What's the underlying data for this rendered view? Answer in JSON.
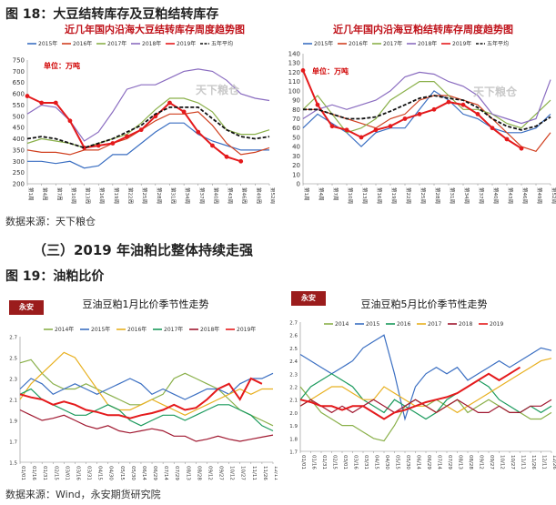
{
  "figure18": {
    "title": "图 18：大豆结转库存及豆粕结转库存",
    "source": "数据来源：天下粮仓"
  },
  "section": {
    "title": "（三）2019 年油粕比整体持续走强"
  },
  "figure19": {
    "title": "图 19：油粕比价",
    "source": "数据来源：Wind，永安期货研究院"
  },
  "logo": {
    "text": "天下粮仓"
  },
  "chart_data": [
    {
      "type": "line",
      "title": "近几年国内沿海大豆结转库存周度趋势图",
      "unit_label": "单位：万吨",
      "ylim": [
        200,
        750
      ],
      "yticks": [
        200,
        250,
        300,
        350,
        400,
        450,
        500,
        550,
        600,
        650,
        700,
        750
      ],
      "categories": [
        "第1周",
        "第4周",
        "第7周",
        "第10周",
        "第13周",
        "第16周",
        "第19周",
        "第22周",
        "第25周",
        "第28周",
        "第31周",
        "第34周",
        "第37周",
        "第40周",
        "第43周",
        "第46周",
        "第49周",
        "第52周"
      ],
      "series": [
        {
          "name": "2015年",
          "color": "#3b6fc2",
          "values": [
            300,
            300,
            290,
            300,
            270,
            280,
            330,
            330,
            380,
            430,
            470,
            470,
            420,
            390,
            370,
            350,
            350,
            350
          ]
        },
        {
          "name": "2016年",
          "color": "#d04020",
          "values": [
            350,
            340,
            340,
            330,
            350,
            350,
            380,
            400,
            440,
            480,
            510,
            510,
            520,
            460,
            380,
            330,
            340,
            360
          ]
        },
        {
          "name": "2017年",
          "color": "#8ab04a",
          "values": [
            380,
            400,
            390,
            380,
            360,
            380,
            400,
            420,
            470,
            530,
            580,
            580,
            560,
            520,
            440,
            420,
            420,
            440
          ]
        },
        {
          "name": "2018年",
          "color": "#8a6cc0",
          "values": [
            510,
            550,
            540,
            480,
            390,
            430,
            520,
            620,
            640,
            640,
            670,
            700,
            710,
            700,
            660,
            600,
            580,
            570
          ]
        },
        {
          "name": "2019年",
          "color": "#e41a1c",
          "values": [
            590,
            560,
            560,
            480,
            360,
            370,
            380,
            410,
            440,
            500,
            560,
            520,
            430,
            370,
            320,
            300,
            null,
            null
          ]
        },
        {
          "name": "五年平均",
          "color": "#111111",
          "values": [
            400,
            410,
            400,
            380,
            360,
            380,
            400,
            430,
            460,
            510,
            540,
            540,
            540,
            490,
            440,
            410,
            400,
            410
          ]
        }
      ]
    },
    {
      "type": "line",
      "title": "近几年国内沿海豆粕结转库存周度趋势图",
      "unit_label": "单位：万吨",
      "ylim": [
        0,
        140
      ],
      "yticks": [
        0,
        10,
        20,
        30,
        40,
        50,
        60,
        70,
        80,
        90,
        100,
        110,
        120,
        130,
        140
      ],
      "categories": [
        "第1周",
        "第4周",
        "第7周",
        "第10周",
        "第13周",
        "第16周",
        "第19周",
        "第22周",
        "第25周",
        "第28周",
        "第31周",
        "第34周",
        "第37周",
        "第40周",
        "第43周",
        "第46周",
        "第49周",
        "第52周"
      ],
      "series": [
        {
          "name": "2015年",
          "color": "#3b6fc2",
          "values": [
            60,
            75,
            65,
            55,
            40,
            55,
            60,
            60,
            80,
            100,
            90,
            75,
            70,
            60,
            55,
            55,
            60,
            75
          ]
        },
        {
          "name": "2016年",
          "color": "#d04020",
          "values": [
            80,
            80,
            75,
            70,
            65,
            60,
            70,
            75,
            90,
            95,
            95,
            90,
            85,
            70,
            55,
            40,
            35,
            55
          ]
        },
        {
          "name": "2017年",
          "color": "#8ab04a",
          "values": [
            80,
            95,
            75,
            55,
            60,
            70,
            90,
            100,
            110,
            110,
            95,
            80,
            80,
            75,
            65,
            60,
            75,
            90
          ]
        },
        {
          "name": "2018年",
          "color": "#8a6cc0",
          "values": [
            70,
            80,
            85,
            80,
            85,
            90,
            100,
            115,
            120,
            118,
            110,
            105,
            95,
            75,
            70,
            65,
            70,
            112
          ]
        },
        {
          "name": "2019年",
          "color": "#e41a1c",
          "values": [
            122,
            85,
            62,
            58,
            50,
            58,
            62,
            70,
            75,
            80,
            88,
            85,
            75,
            60,
            48,
            38,
            null,
            null
          ]
        },
        {
          "name": "五年平均",
          "color": "#111111",
          "values": [
            80,
            80,
            75,
            70,
            70,
            72,
            78,
            85,
            92,
            95,
            92,
            90,
            82,
            70,
            62,
            58,
            62,
            72
          ]
        }
      ]
    },
    {
      "type": "line",
      "title": "豆油豆粕1月比价季节性走势",
      "ylim": [
        1.5,
        2.7
      ],
      "yticks": [
        1.5,
        1.7,
        1.9,
        2.1,
        2.3,
        2.5,
        2.7
      ],
      "categories": [
        "01/01",
        "01/16",
        "01/31",
        "02/15",
        "03/01",
        "03/16",
        "03/31",
        "04/15",
        "04/30",
        "05/15",
        "05/30",
        "06/14",
        "06/29",
        "07/14",
        "07/29",
        "08/13",
        "08/28",
        "09/12",
        "09/27",
        "10/12",
        "10/27",
        "11/11",
        "11/26",
        "12/11"
      ],
      "series": [
        {
          "name": "2014年",
          "color": "#8ab04a",
          "values": [
            2.45,
            2.48,
            2.35,
            2.25,
            2.2,
            2.2,
            2.25,
            2.2,
            2.15,
            2.1,
            2.05,
            2.05,
            2.1,
            2.15,
            2.3,
            2.35,
            2.3,
            2.25,
            2.2,
            2.1,
            2.0,
            1.95,
            1.9,
            1.85
          ]
        },
        {
          "name": "2015年",
          "color": "#3b6fc2",
          "values": [
            2.2,
            2.3,
            2.25,
            2.15,
            2.2,
            2.25,
            2.2,
            2.15,
            2.2,
            2.25,
            2.3,
            2.25,
            2.15,
            2.2,
            2.15,
            2.1,
            2.15,
            2.2,
            2.2,
            2.15,
            2.25,
            2.3,
            2.3,
            2.35
          ]
        },
        {
          "name": "2016年",
          "color": "#e8b020",
          "values": [
            2.1,
            2.25,
            2.35,
            2.45,
            2.55,
            2.5,
            2.35,
            2.2,
            2.05,
            2.0,
            2.0,
            2.05,
            2.1,
            2.05,
            2.0,
            1.95,
            2.0,
            2.05,
            2.1,
            2.15,
            2.2,
            2.15,
            2.2,
            2.2
          ]
        },
        {
          "name": "2017年",
          "color": "#1a9a5c",
          "values": [
            2.15,
            2.2,
            2.1,
            2.05,
            2.0,
            1.95,
            1.95,
            2.0,
            2.05,
            2.0,
            1.9,
            1.85,
            1.9,
            1.95,
            1.95,
            1.9,
            1.95,
            2.0,
            2.05,
            2.05,
            2.0,
            1.95,
            1.85,
            1.8
          ]
        },
        {
          "name": "2018年",
          "color": "#a01830",
          "values": [
            2.0,
            1.95,
            1.9,
            1.92,
            1.95,
            1.9,
            1.85,
            1.82,
            1.85,
            1.8,
            1.78,
            1.8,
            1.82,
            1.8,
            1.75,
            1.75,
            1.7,
            1.72,
            1.75,
            1.72,
            1.7,
            1.72,
            1.74,
            1.76
          ]
        },
        {
          "name": "2019年",
          "color": "#e41a1c",
          "values": [
            2.15,
            2.12,
            2.1,
            2.05,
            2.08,
            2.05,
            2.0,
            1.98,
            1.95,
            1.95,
            1.92,
            1.95,
            1.97,
            2.0,
            2.05,
            2.0,
            2.02,
            2.1,
            2.2,
            2.25,
            2.1,
            2.3,
            2.25,
            null
          ]
        }
      ]
    },
    {
      "type": "line",
      "title": "豆油豆粕5月比价季节性走势",
      "ylim": [
        1.7,
        2.7
      ],
      "yticks": [
        1.7,
        1.8,
        1.9,
        2.0,
        2.1,
        2.2,
        2.3,
        2.4,
        2.5,
        2.6,
        2.7
      ],
      "categories": [
        "01/01",
        "01/16",
        "01/31",
        "02/15",
        "03/01",
        "03/16",
        "03/31",
        "04/15",
        "04/30",
        "05/15",
        "05/30",
        "06/14",
        "06/29",
        "07/14",
        "07/29",
        "08/13",
        "08/28",
        "09/12",
        "09/27",
        "10/12",
        "10/27",
        "11/11",
        "11/26",
        "12/11",
        "12/26"
      ],
      "series": [
        {
          "name": "2014",
          "color": "#8ab04a",
          "values": [
            2.2,
            2.1,
            2.0,
            1.95,
            1.9,
            1.9,
            1.85,
            1.8,
            1.78,
            1.9,
            2.05,
            2.1,
            2.05,
            2.1,
            2.05,
            2.1,
            2.0,
            2.05,
            2.1,
            2.05,
            2.0,
            2.0,
            1.95,
            1.95,
            2.0
          ]
        },
        {
          "name": "2015",
          "color": "#3b6fc2",
          "values": [
            2.45,
            2.4,
            2.35,
            2.3,
            2.35,
            2.4,
            2.5,
            2.55,
            2.6,
            2.3,
            1.95,
            2.2,
            2.3,
            2.35,
            2.3,
            2.35,
            2.25,
            2.3,
            2.35,
            2.4,
            2.35,
            2.4,
            2.45,
            2.5,
            2.48
          ]
        },
        {
          "name": "2016",
          "color": "#1a9a5c",
          "values": [
            2.1,
            2.2,
            2.25,
            2.3,
            2.25,
            2.2,
            2.1,
            2.05,
            2.0,
            2.1,
            2.05,
            2.0,
            1.95,
            2.0,
            2.1,
            2.15,
            2.2,
            2.25,
            2.2,
            2.1,
            2.05,
            2.0,
            2.05,
            2.0,
            2.05
          ]
        },
        {
          "name": "2017",
          "color": "#e8b020",
          "values": [
            2.05,
            2.1,
            2.15,
            2.2,
            2.2,
            2.15,
            2.1,
            2.1,
            2.2,
            2.15,
            2.1,
            2.05,
            2.05,
            2.0,
            2.05,
            2.0,
            2.05,
            2.1,
            2.15,
            2.2,
            2.25,
            2.3,
            2.35,
            2.4,
            2.42
          ]
        },
        {
          "name": "2018",
          "color": "#a01830",
          "values": [
            2.05,
            2.1,
            2.05,
            2.0,
            2.05,
            2.0,
            2.05,
            2.1,
            2.05,
            2.0,
            2.05,
            2.1,
            2.05,
            2.0,
            2.05,
            2.1,
            2.05,
            2.0,
            2.0,
            2.05,
            2.0,
            2.0,
            2.05,
            2.05,
            2.1
          ]
        },
        {
          "name": "2019",
          "color": "#e41a1c",
          "values": [
            2.1,
            2.08,
            2.05,
            2.05,
            2.02,
            2.05,
            2.05,
            2.0,
            1.95,
            2.0,
            2.02,
            2.05,
            2.08,
            2.1,
            2.12,
            2.15,
            2.2,
            2.25,
            2.3,
            2.25,
            2.3,
            2.35,
            null,
            null,
            null
          ]
        }
      ]
    }
  ]
}
